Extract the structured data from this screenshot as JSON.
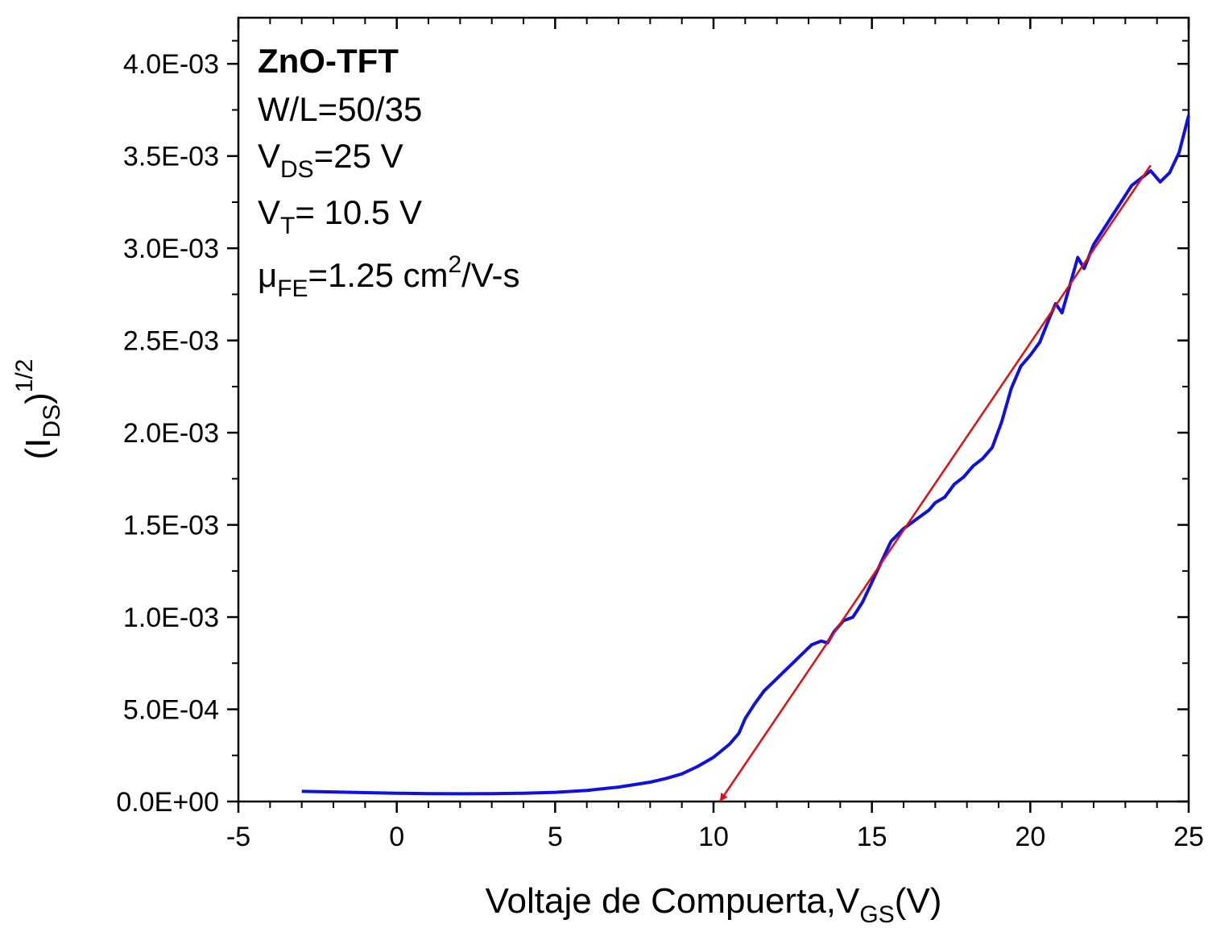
{
  "chart_data": {
    "type": "line",
    "x_axis": {
      "label_main": "Voltaje de Compuerta,V",
      "label_sub": "GS",
      "label_tail": "(V)",
      "range": [
        -5,
        25
      ],
      "ticks": [
        -5,
        0,
        5,
        10,
        15,
        20,
        25
      ],
      "tick_labels": [
        "-5",
        "0",
        "5",
        "10",
        "15",
        "20",
        "25"
      ]
    },
    "y_axis": {
      "label_open": "(I",
      "label_sub": "DS",
      "label_close": ")",
      "label_sup": "1/2",
      "range": [
        0,
        0.00425
      ],
      "ticks": [
        0,
        0.0005,
        0.001,
        0.0015,
        0.002,
        0.0025,
        0.003,
        0.0035,
        0.004
      ],
      "tick_labels": [
        "0.0E+00",
        "5.0E-04",
        "1.0E-03",
        "1.5E-03",
        "2.0E-03",
        "2.5E-03",
        "3.0E-03",
        "3.5E-03",
        "4.0E-03"
      ]
    },
    "annotations": {
      "title": "ZnO-TFT",
      "geometry": "W/L=50/35",
      "vds_main": "V",
      "vds_sub": "DS",
      "vds_tail": "=25 V",
      "vt_main": "V",
      "vt_sub": "T",
      "vt_tail": "= 10.5 V",
      "mu_main": "μ",
      "mu_sub": "FE",
      "mu_mid": "=1.25 cm",
      "mu_sup": "2",
      "mu_tail": "/V-s"
    },
    "series": [
      {
        "name": "sqrt(I_DS)",
        "color": "#1010e0",
        "x": [
          -3.0,
          -2.0,
          -1.0,
          0.0,
          1.0,
          2.0,
          3.0,
          4.0,
          5.0,
          6.0,
          7.0,
          8.0,
          8.5,
          9.0,
          9.5,
          10.0,
          10.5,
          10.8,
          11.0,
          11.3,
          11.6,
          11.9,
          12.2,
          12.5,
          12.8,
          13.1,
          13.4,
          13.6,
          13.8,
          14.1,
          14.4,
          14.7,
          15.0,
          15.3,
          15.6,
          16.0,
          16.4,
          16.8,
          17.0,
          17.3,
          17.6,
          17.9,
          18.2,
          18.5,
          18.8,
          19.1,
          19.4,
          19.7,
          20.0,
          20.3,
          20.6,
          20.8,
          21.0,
          21.3,
          21.5,
          21.7,
          22.0,
          22.3,
          22.6,
          22.9,
          23.2,
          23.5,
          23.8,
          24.1,
          24.4,
          24.7,
          25.0
        ],
        "values": [
          5.5e-05,
          5.2e-05,
          4.8e-05,
          4.5e-05,
          4.3e-05,
          4.2e-05,
          4.3e-05,
          4.5e-05,
          5e-05,
          6e-05,
          7.8e-05,
          0.000105,
          0.000125,
          0.00015,
          0.00019,
          0.00024,
          0.00031,
          0.00037,
          0.00045,
          0.00053,
          0.0006,
          0.00065,
          0.0007,
          0.00075,
          0.0008,
          0.00085,
          0.00087,
          0.00086,
          0.00092,
          0.00098,
          0.001,
          0.00108,
          0.00119,
          0.0013,
          0.00141,
          0.00148,
          0.00153,
          0.00158,
          0.00162,
          0.00165,
          0.00172,
          0.00176,
          0.00182,
          0.00186,
          0.00192,
          0.00206,
          0.00224,
          0.00236,
          0.00242,
          0.00249,
          0.00262,
          0.0027,
          0.00265,
          0.00283,
          0.00295,
          0.00289,
          0.00302,
          0.0031,
          0.00318,
          0.00326,
          0.00334,
          0.00338,
          0.00342,
          0.00336,
          0.00341,
          0.00352,
          0.00372
        ]
      },
      {
        "name": "linear fit (arrow)",
        "color": "#e01010",
        "x": [
          23.8,
          10.2
        ],
        "values": [
          0.00345,
          0.0
        ]
      }
    ]
  }
}
